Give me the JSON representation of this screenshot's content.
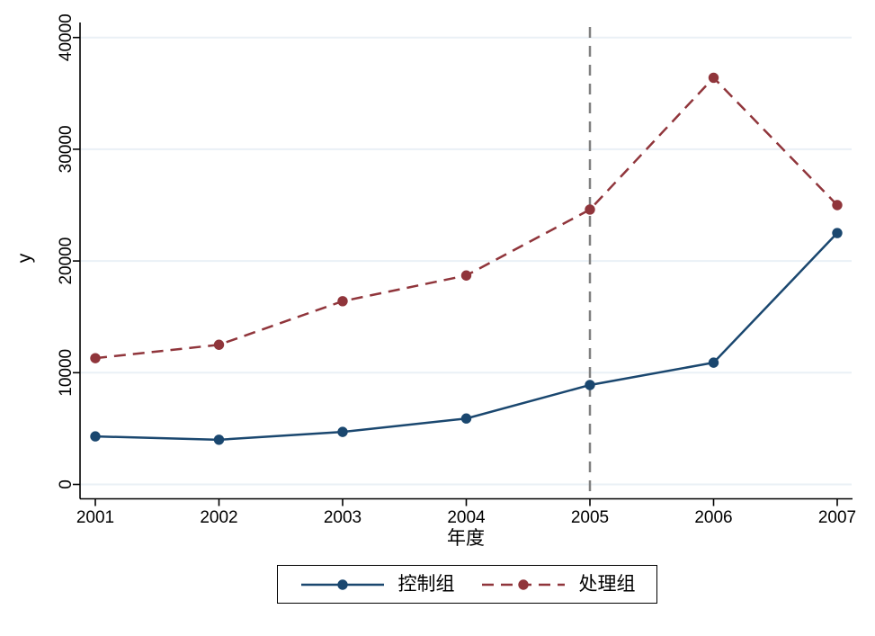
{
  "chart_data": {
    "type": "line",
    "x": [
      2001,
      2002,
      2003,
      2004,
      2005,
      2006,
      2007
    ],
    "series": [
      {
        "name": "控制组",
        "color": "#1A476F",
        "line_style": "solid",
        "marker": "circle",
        "values": [
          4300,
          4000,
          4700,
          5900,
          8900,
          10900,
          22500
        ]
      },
      {
        "name": "处理组",
        "color": "#90353B",
        "line_style": "dashed",
        "marker": "circle",
        "values": [
          11300,
          12500,
          16400,
          18700,
          24600,
          36400,
          25000
        ]
      }
    ],
    "title": "",
    "xlabel": "年度",
    "ylabel": "y",
    "xlim": [
      2001,
      2007
    ],
    "ylim": [
      0,
      40000
    ],
    "xticks": [
      "2001",
      "2002",
      "2003",
      "2004",
      "2005",
      "2006",
      "2007"
    ],
    "yticks": [
      "0",
      "10000",
      "20000",
      "30000",
      "40000"
    ],
    "ytick_values": [
      0,
      10000,
      20000,
      30000,
      40000
    ],
    "grid": "horizontal-only",
    "gridline_color": "#EAF0F6",
    "axis_color": "#000000",
    "background_color": "#FFFFFF",
    "vline": {
      "x": 2005,
      "color": "#808080",
      "style": "dashed"
    },
    "legend": {
      "position": "bottom",
      "border": true,
      "entries": [
        "控制组",
        "处理组"
      ]
    }
  }
}
